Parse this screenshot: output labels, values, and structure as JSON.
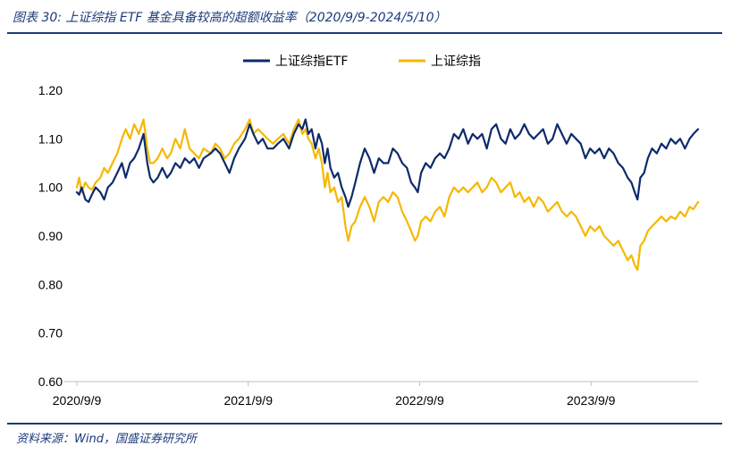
{
  "figure": {
    "title": "图表 30:  上证综指 ETF 基金具备较高的超额收益率（2020/9/9-2024/5/10）",
    "source": "资料来源：Wind，国盛证券研究所"
  },
  "colors": {
    "etf": "#0e2a6b",
    "index": "#f5b800",
    "rule": "#1b3a7a",
    "axis": "#bfbfbf"
  },
  "chart_data": {
    "type": "line",
    "title": "",
    "xlabel": "",
    "ylabel": "",
    "ylim": [
      0.6,
      1.2
    ],
    "yticks": [
      "1.20",
      "1.10",
      "1.00",
      "0.90",
      "0.80",
      "0.70",
      "0.60"
    ],
    "ytick_values": [
      1.2,
      1.1,
      1.0,
      0.9,
      0.8,
      0.7,
      0.6
    ],
    "xlim": [
      0,
      1323
    ],
    "xticks": [
      "2020/9/9",
      "2021/9/9",
      "2022/9/9",
      "2023/9/9"
    ],
    "xtick_values": [
      0,
      365,
      730,
      1095
    ],
    "x_unit": "days since 2020/9/9",
    "x_end_label": "2024/5/10",
    "legend_position": "top-center",
    "grid": false,
    "series": [
      {
        "name": "上证综指ETF",
        "color_key": "etf",
        "points": [
          [
            0,
            0.99
          ],
          [
            5,
            0.985
          ],
          [
            10,
            1.0
          ],
          [
            18,
            0.975
          ],
          [
            25,
            0.97
          ],
          [
            32,
            0.985
          ],
          [
            40,
            1.0
          ],
          [
            50,
            0.99
          ],
          [
            58,
            0.975
          ],
          [
            66,
            1.0
          ],
          [
            76,
            1.01
          ],
          [
            86,
            1.03
          ],
          [
            96,
            1.05
          ],
          [
            104,
            1.02
          ],
          [
            113,
            1.05
          ],
          [
            122,
            1.06
          ],
          [
            132,
            1.08
          ],
          [
            142,
            1.11
          ],
          [
            150,
            1.05
          ],
          [
            156,
            1.02
          ],
          [
            163,
            1.01
          ],
          [
            172,
            1.02
          ],
          [
            182,
            1.04
          ],
          [
            192,
            1.02
          ],
          [
            200,
            1.03
          ],
          [
            210,
            1.05
          ],
          [
            220,
            1.04
          ],
          [
            230,
            1.06
          ],
          [
            240,
            1.05
          ],
          [
            250,
            1.06
          ],
          [
            260,
            1.04
          ],
          [
            270,
            1.06
          ],
          [
            285,
            1.07
          ],
          [
            295,
            1.08
          ],
          [
            305,
            1.07
          ],
          [
            315,
            1.05
          ],
          [
            325,
            1.03
          ],
          [
            335,
            1.06
          ],
          [
            345,
            1.08
          ],
          [
            358,
            1.1
          ],
          [
            368,
            1.13
          ],
          [
            376,
            1.11
          ],
          [
            386,
            1.09
          ],
          [
            396,
            1.1
          ],
          [
            406,
            1.08
          ],
          [
            418,
            1.08
          ],
          [
            428,
            1.09
          ],
          [
            440,
            1.1
          ],
          [
            452,
            1.08
          ],
          [
            462,
            1.11
          ],
          [
            472,
            1.13
          ],
          [
            480,
            1.12
          ],
          [
            487,
            1.14
          ],
          [
            493,
            1.11
          ],
          [
            500,
            1.12
          ],
          [
            508,
            1.08
          ],
          [
            515,
            1.11
          ],
          [
            522,
            1.09
          ],
          [
            528,
            1.05
          ],
          [
            534,
            1.08
          ],
          [
            540,
            1.04
          ],
          [
            548,
            1.02
          ],
          [
            556,
            1.03
          ],
          [
            564,
            1.0
          ],
          [
            572,
            0.98
          ],
          [
            578,
            0.96
          ],
          [
            585,
            0.98
          ],
          [
            593,
            1.01
          ],
          [
            603,
            1.05
          ],
          [
            613,
            1.08
          ],
          [
            623,
            1.06
          ],
          [
            633,
            1.03
          ],
          [
            643,
            1.06
          ],
          [
            653,
            1.05
          ],
          [
            663,
            1.05
          ],
          [
            673,
            1.08
          ],
          [
            683,
            1.07
          ],
          [
            693,
            1.05
          ],
          [
            703,
            1.04
          ],
          [
            712,
            1.01
          ],
          [
            720,
            1.0
          ],
          [
            726,
            0.99
          ],
          [
            733,
            1.03
          ],
          [
            743,
            1.05
          ],
          [
            753,
            1.04
          ],
          [
            763,
            1.06
          ],
          [
            773,
            1.07
          ],
          [
            783,
            1.06
          ],
          [
            793,
            1.08
          ],
          [
            803,
            1.11
          ],
          [
            813,
            1.1
          ],
          [
            823,
            1.12
          ],
          [
            833,
            1.09
          ],
          [
            843,
            1.11
          ],
          [
            853,
            1.1
          ],
          [
            863,
            1.11
          ],
          [
            873,
            1.08
          ],
          [
            883,
            1.12
          ],
          [
            893,
            1.13
          ],
          [
            903,
            1.1
          ],
          [
            913,
            1.09
          ],
          [
            923,
            1.12
          ],
          [
            933,
            1.1
          ],
          [
            943,
            1.11
          ],
          [
            953,
            1.13
          ],
          [
            963,
            1.11
          ],
          [
            973,
            1.1
          ],
          [
            983,
            1.11
          ],
          [
            993,
            1.12
          ],
          [
            1003,
            1.09
          ],
          [
            1013,
            1.1
          ],
          [
            1023,
            1.13
          ],
          [
            1033,
            1.11
          ],
          [
            1043,
            1.09
          ],
          [
            1053,
            1.11
          ],
          [
            1063,
            1.1
          ],
          [
            1073,
            1.09
          ],
          [
            1083,
            1.06
          ],
          [
            1093,
            1.08
          ],
          [
            1103,
            1.07
          ],
          [
            1113,
            1.08
          ],
          [
            1123,
            1.06
          ],
          [
            1133,
            1.08
          ],
          [
            1143,
            1.07
          ],
          [
            1153,
            1.05
          ],
          [
            1163,
            1.04
          ],
          [
            1173,
            1.02
          ],
          [
            1181,
            1.01
          ],
          [
            1188,
            0.99
          ],
          [
            1194,
            0.975
          ],
          [
            1200,
            1.02
          ],
          [
            1208,
            1.03
          ],
          [
            1216,
            1.06
          ],
          [
            1225,
            1.08
          ],
          [
            1235,
            1.07
          ],
          [
            1245,
            1.09
          ],
          [
            1255,
            1.08
          ],
          [
            1265,
            1.1
          ],
          [
            1275,
            1.09
          ],
          [
            1285,
            1.1
          ],
          [
            1295,
            1.08
          ],
          [
            1305,
            1.1
          ],
          [
            1313,
            1.11
          ],
          [
            1323,
            1.12
          ]
        ]
      },
      {
        "name": "上证综指",
        "color_key": "index",
        "points": [
          [
            0,
            1.0
          ],
          [
            5,
            1.02
          ],
          [
            10,
            0.99
          ],
          [
            18,
            1.01
          ],
          [
            25,
            1.0
          ],
          [
            32,
            0.995
          ],
          [
            40,
            1.01
          ],
          [
            50,
            1.02
          ],
          [
            58,
            1.04
          ],
          [
            66,
            1.03
          ],
          [
            76,
            1.05
          ],
          [
            86,
            1.07
          ],
          [
            96,
            1.1
          ],
          [
            104,
            1.12
          ],
          [
            113,
            1.1
          ],
          [
            122,
            1.13
          ],
          [
            132,
            1.11
          ],
          [
            142,
            1.14
          ],
          [
            150,
            1.08
          ],
          [
            156,
            1.05
          ],
          [
            163,
            1.05
          ],
          [
            172,
            1.06
          ],
          [
            182,
            1.08
          ],
          [
            192,
            1.06
          ],
          [
            200,
            1.07
          ],
          [
            210,
            1.1
          ],
          [
            220,
            1.08
          ],
          [
            230,
            1.12
          ],
          [
            240,
            1.08
          ],
          [
            250,
            1.07
          ],
          [
            260,
            1.06
          ],
          [
            270,
            1.08
          ],
          [
            285,
            1.07
          ],
          [
            295,
            1.09
          ],
          [
            305,
            1.08
          ],
          [
            315,
            1.06
          ],
          [
            325,
            1.07
          ],
          [
            335,
            1.09
          ],
          [
            345,
            1.1
          ],
          [
            358,
            1.12
          ],
          [
            368,
            1.14
          ],
          [
            376,
            1.11
          ],
          [
            386,
            1.12
          ],
          [
            396,
            1.11
          ],
          [
            406,
            1.1
          ],
          [
            418,
            1.09
          ],
          [
            428,
            1.1
          ],
          [
            440,
            1.11
          ],
          [
            452,
            1.09
          ],
          [
            462,
            1.12
          ],
          [
            472,
            1.14
          ],
          [
            480,
            1.11
          ],
          [
            487,
            1.12
          ],
          [
            493,
            1.1
          ],
          [
            500,
            1.09
          ],
          [
            508,
            1.06
          ],
          [
            515,
            1.08
          ],
          [
            522,
            1.05
          ],
          [
            528,
            1.0
          ],
          [
            534,
            1.03
          ],
          [
            540,
            0.99
          ],
          [
            548,
            1.0
          ],
          [
            556,
            0.97
          ],
          [
            564,
            0.98
          ],
          [
            572,
            0.92
          ],
          [
            578,
            0.89
          ],
          [
            585,
            0.92
          ],
          [
            593,
            0.93
          ],
          [
            603,
            0.96
          ],
          [
            613,
            0.98
          ],
          [
            623,
            0.96
          ],
          [
            633,
            0.93
          ],
          [
            643,
            0.97
          ],
          [
            653,
            0.98
          ],
          [
            663,
            0.97
          ],
          [
            673,
            0.99
          ],
          [
            683,
            0.98
          ],
          [
            693,
            0.95
          ],
          [
            703,
            0.93
          ],
          [
            712,
            0.91
          ],
          [
            720,
            0.89
          ],
          [
            726,
            0.9
          ],
          [
            733,
            0.93
          ],
          [
            743,
            0.94
          ],
          [
            753,
            0.93
          ],
          [
            763,
            0.95
          ],
          [
            773,
            0.96
          ],
          [
            783,
            0.94
          ],
          [
            793,
            0.98
          ],
          [
            803,
            1.0
          ],
          [
            813,
            0.99
          ],
          [
            823,
            1.0
          ],
          [
            833,
            0.99
          ],
          [
            843,
            1.0
          ],
          [
            853,
            1.01
          ],
          [
            863,
            0.99
          ],
          [
            873,
            1.0
          ],
          [
            883,
            1.02
          ],
          [
            893,
            1.01
          ],
          [
            903,
            0.99
          ],
          [
            913,
            1.0
          ],
          [
            923,
            1.01
          ],
          [
            933,
            0.98
          ],
          [
            943,
            0.99
          ],
          [
            953,
            0.97
          ],
          [
            963,
            0.98
          ],
          [
            973,
            0.96
          ],
          [
            983,
            0.98
          ],
          [
            993,
            0.97
          ],
          [
            1003,
            0.95
          ],
          [
            1013,
            0.96
          ],
          [
            1023,
            0.97
          ],
          [
            1033,
            0.95
          ],
          [
            1043,
            0.94
          ],
          [
            1053,
            0.95
          ],
          [
            1063,
            0.94
          ],
          [
            1073,
            0.92
          ],
          [
            1083,
            0.9
          ],
          [
            1093,
            0.92
          ],
          [
            1103,
            0.91
          ],
          [
            1113,
            0.92
          ],
          [
            1123,
            0.9
          ],
          [
            1133,
            0.89
          ],
          [
            1143,
            0.88
          ],
          [
            1153,
            0.89
          ],
          [
            1163,
            0.87
          ],
          [
            1173,
            0.85
          ],
          [
            1181,
            0.86
          ],
          [
            1188,
            0.84
          ],
          [
            1194,
            0.83
          ],
          [
            1200,
            0.88
          ],
          [
            1208,
            0.89
          ],
          [
            1216,
            0.91
          ],
          [
            1225,
            0.92
          ],
          [
            1235,
            0.93
          ],
          [
            1245,
            0.94
          ],
          [
            1255,
            0.93
          ],
          [
            1265,
            0.94
          ],
          [
            1275,
            0.935
          ],
          [
            1285,
            0.95
          ],
          [
            1295,
            0.94
          ],
          [
            1305,
            0.96
          ],
          [
            1313,
            0.955
          ],
          [
            1323,
            0.97
          ]
        ]
      }
    ]
  }
}
